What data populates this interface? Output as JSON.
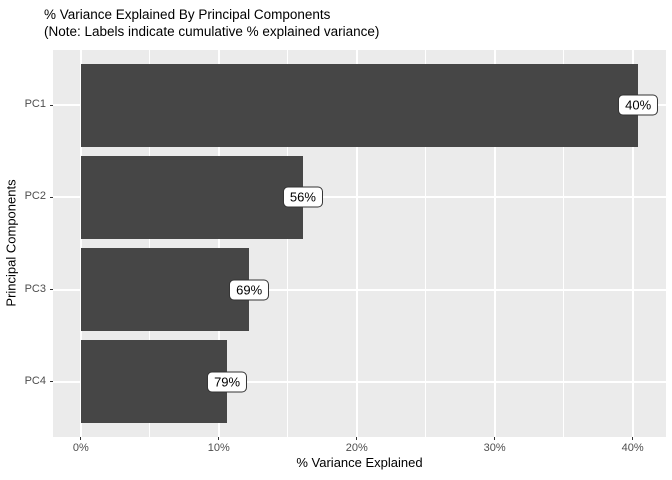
{
  "chart_data": {
    "type": "bar",
    "orientation": "horizontal",
    "title": "% Variance Explained By Principal Components",
    "subtitle": "(Note: Labels indicate cumulative % explained variance)",
    "xlabel": "% Variance Explained",
    "ylabel": "Principal Components",
    "categories": [
      "PC1",
      "PC2",
      "PC3",
      "PC4"
    ],
    "values": [
      40.4,
      16.1,
      12.2,
      10.6
    ],
    "cumulative_values": [
      40,
      56,
      69,
      79
    ],
    "bar_labels": [
      "40%",
      "56%",
      "69%",
      "79%"
    ],
    "x_ticks": [
      0,
      10,
      20,
      30,
      40
    ],
    "x_tick_labels": [
      "0%",
      "10%",
      "20%",
      "30%",
      "40%"
    ],
    "x_minor_ticks": [
      5,
      15,
      25,
      35
    ],
    "xlim": [
      0,
      40.4
    ],
    "grid": true,
    "legend": false,
    "colors": {
      "bar_fill": "#464646",
      "panel_bg": "#EBEBEB",
      "gridline": "#FFFFFF",
      "tick_text": "#4D4D4D",
      "tick_mark": "#333333",
      "label_box_bg": "#FFFFFF",
      "label_box_border": "#333333",
      "title_text": "#000000"
    }
  }
}
